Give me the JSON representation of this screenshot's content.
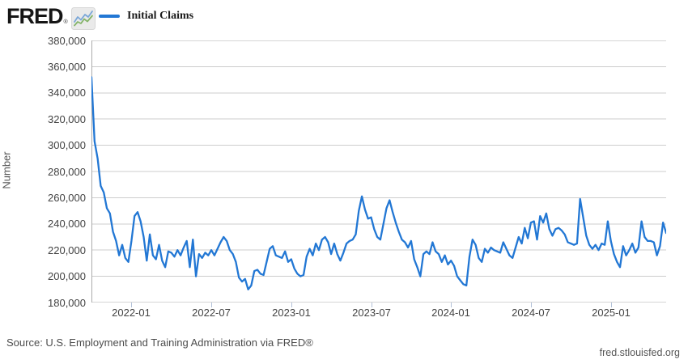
{
  "header": {
    "logo_text": "FRED",
    "logo_registered_mark": "®",
    "logo_icon": "sparkline-icon",
    "legend": {
      "label": "Initial Claims",
      "swatch_color": "#2277d4"
    }
  },
  "footer": {
    "source_text": "Source: U.S. Employment and Training Administration via FRED®",
    "site_text": "fred.stlouisfed.org"
  },
  "colors": {
    "line": "#2277d4",
    "grid": "#cdcdcd",
    "axis_border": "#ababab",
    "x_tick_mark": "#b3c2d9",
    "axis_text": "#434343",
    "logo_icon_blue": "#7aa7d8",
    "logo_icon_green": "#84b469",
    "logo_icon_bg": "#eaeaea"
  },
  "chart_data": {
    "type": "line",
    "title": "",
    "ylabel": "Number",
    "xlabel": "",
    "ylim": [
      180000,
      380000
    ],
    "y_tick_step": 20000,
    "grid": "horizontal",
    "legend_position": "top",
    "y_tick_labels": [
      "380,000",
      "360,000",
      "340,000",
      "320,000",
      "300,000",
      "280,000",
      "260,000",
      "240,000",
      "220,000",
      "200,000",
      "180,000"
    ],
    "x_tick_labels": [
      "2022-01",
      "2022-07",
      "2023-01",
      "2023-07",
      "2024-01",
      "2024-07",
      "2025-01"
    ],
    "x_tick_positions": [
      13,
      39,
      65,
      91,
      117,
      143,
      169
    ],
    "series": [
      {
        "name": "Initial Claims",
        "color": "#2277d4",
        "values": [
          352000,
          303000,
          290000,
          269000,
          264000,
          252000,
          248000,
          234000,
          227000,
          216000,
          224000,
          214000,
          211000,
          227000,
          246000,
          249000,
          242000,
          230000,
          212000,
          232000,
          216000,
          213000,
          224000,
          212000,
          207000,
          219000,
          218000,
          215000,
          220000,
          216000,
          222000,
          227000,
          207000,
          228000,
          200000,
          217000,
          214000,
          218000,
          216000,
          220000,
          216000,
          221000,
          226000,
          230000,
          227000,
          220000,
          217000,
          211000,
          199000,
          196000,
          198000,
          190000,
          193000,
          204000,
          205000,
          202000,
          201000,
          211000,
          221000,
          223000,
          216000,
          215000,
          214000,
          219000,
          211000,
          213000,
          206000,
          202000,
          200000,
          201000,
          215000,
          221000,
          216000,
          225000,
          220000,
          228000,
          230000,
          226000,
          217000,
          225000,
          217000,
          212000,
          218000,
          225000,
          227000,
          228000,
          232000,
          250000,
          261000,
          251000,
          244000,
          245000,
          236000,
          230000,
          228000,
          240000,
          252000,
          258000,
          249000,
          241000,
          234000,
          228000,
          226000,
          222000,
          227000,
          213000,
          207000,
          200000,
          217000,
          219000,
          217000,
          226000,
          219000,
          217000,
          211000,
          216000,
          209000,
          212000,
          208000,
          200000,
          197000,
          194000,
          193000,
          215000,
          228000,
          224000,
          214000,
          211000,
          221000,
          218000,
          222000,
          220000,
          219000,
          218000,
          226000,
          221000,
          216000,
          214000,
          222000,
          230000,
          225000,
          237000,
          229000,
          241000,
          242000,
          228000,
          246000,
          241000,
          248000,
          236000,
          231000,
          236000,
          237000,
          235000,
          232000,
          226000,
          225000,
          224000,
          225000,
          259000,
          245000,
          231000,
          224000,
          221000,
          224000,
          220000,
          225000,
          224000,
          242000,
          227000,
          217000,
          211000,
          207000,
          223000,
          216000,
          220000,
          225000,
          218000,
          222000,
          242000,
          230000,
          227000,
          227000,
          226000,
          216000,
          223000,
          241000,
          233000
        ]
      }
    ]
  }
}
